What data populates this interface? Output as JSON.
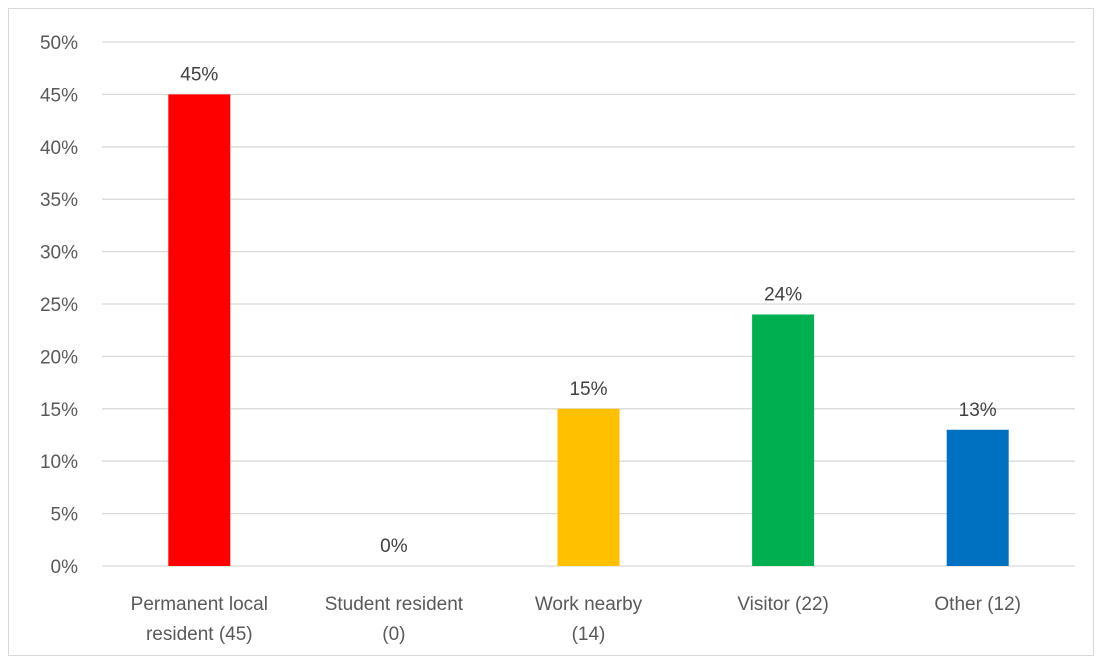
{
  "chart_data": {
    "type": "bar",
    "categories": [
      [
        "Permanent local",
        "resident (45)"
      ],
      [
        "Student resident",
        "(0)"
      ],
      [
        "Work nearby",
        "(14)"
      ],
      [
        "Visitor (22)"
      ],
      [
        "Other (12)"
      ]
    ],
    "values": [
      45,
      0,
      15,
      24,
      13
    ],
    "data_labels": [
      "45%",
      "0%",
      "15%",
      "24%",
      "13%"
    ],
    "colors": [
      "#ff0000",
      "#ffffff",
      "#ffc000",
      "#00b050",
      "#0070c0"
    ],
    "ylim": [
      0,
      50
    ],
    "yticks": [
      0,
      5,
      10,
      15,
      20,
      25,
      30,
      35,
      40,
      45,
      50
    ],
    "ytick_labels": [
      "0%",
      "5%",
      "10%",
      "15%",
      "20%",
      "25%",
      "30%",
      "35%",
      "40%",
      "45%",
      "50%"
    ],
    "grid": true,
    "gridline_color": "#d9d9d9",
    "legend": "none",
    "title": "",
    "xlabel": "",
    "ylabel": ""
  }
}
